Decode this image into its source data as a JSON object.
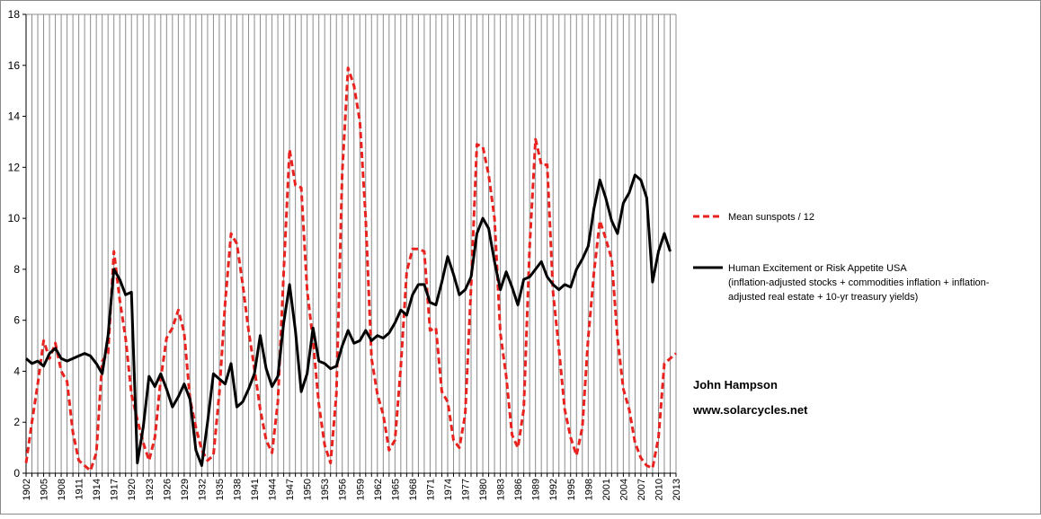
{
  "chart_data": {
    "type": "line",
    "title": "",
    "xlabel": "",
    "ylabel": "",
    "ylim": [
      0,
      18
    ],
    "yticks": [
      0,
      2,
      4,
      6,
      8,
      10,
      12,
      14,
      16,
      18
    ],
    "xlim": [
      1902,
      2013
    ],
    "xtick_labels": [
      "1902",
      "1905",
      "1908",
      "1911",
      "1914",
      "1917",
      "1920",
      "1923",
      "1926",
      "1929",
      "1932",
      "1935",
      "1938",
      "1941",
      "1944",
      "1947",
      "1950",
      "1953",
      "1956",
      "1959",
      "1962",
      "1965",
      "1968",
      "1971",
      "1974",
      "1977",
      "1980",
      "1983",
      "1986",
      "1989",
      "1992",
      "1995",
      "1998",
      "2001",
      "2004",
      "2007",
      "2010",
      "2013"
    ],
    "grid": "vertical-gridlines",
    "legend_position": "right",
    "series": [
      {
        "name": "Mean sunspots  / 12",
        "color": "#e8231f",
        "style": "dashed",
        "x": [
          1902,
          1903,
          1904,
          1905,
          1906,
          1907,
          1908,
          1909,
          1910,
          1911,
          1912,
          1913,
          1914,
          1915,
          1916,
          1917,
          1918,
          1919,
          1920,
          1921,
          1922,
          1923,
          1924,
          1925,
          1926,
          1927,
          1928,
          1929,
          1930,
          1931,
          1932,
          1933,
          1934,
          1935,
          1936,
          1937,
          1938,
          1939,
          1940,
          1941,
          1942,
          1943,
          1944,
          1945,
          1946,
          1947,
          1948,
          1949,
          1950,
          1951,
          1952,
          1953,
          1954,
          1955,
          1956,
          1957,
          1958,
          1959,
          1960,
          1961,
          1962,
          1963,
          1964,
          1965,
          1966,
          1967,
          1968,
          1969,
          1970,
          1971,
          1972,
          1973,
          1974,
          1975,
          1976,
          1977,
          1978,
          1979,
          1980,
          1981,
          1982,
          1983,
          1984,
          1985,
          1986,
          1987,
          1988,
          1989,
          1990,
          1991,
          1992,
          1993,
          1994,
          1995,
          1996,
          1997,
          1998,
          1999,
          2000,
          2001,
          2002,
          2003,
          2004,
          2005,
          2006,
          2007,
          2008,
          2009,
          2010,
          2011,
          2012,
          2013
        ],
        "values": [
          0.4,
          2.0,
          3.5,
          5.2,
          4.5,
          5.1,
          4.0,
          3.6,
          1.6,
          0.5,
          0.3,
          0.1,
          0.8,
          4.4,
          4.7,
          8.7,
          6.8,
          5.3,
          3.1,
          2.1,
          1.2,
          0.5,
          1.4,
          3.7,
          5.3,
          5.7,
          6.4,
          5.5,
          2.9,
          1.8,
          0.9,
          0.5,
          0.7,
          3.1,
          6.7,
          9.4,
          9.0,
          7.4,
          5.6,
          4.1,
          2.5,
          1.3,
          0.8,
          2.8,
          7.9,
          12.7,
          11.3,
          11.2,
          7.2,
          5.2,
          2.7,
          1.1,
          0.4,
          3.1,
          11.8,
          15.9,
          15.2,
          13.8,
          10.0,
          4.5,
          3.1,
          2.3,
          0.9,
          1.3,
          4.2,
          7.9,
          8.8,
          8.8,
          8.7,
          5.6,
          5.7,
          3.2,
          2.8,
          1.3,
          1.0,
          2.3,
          7.3,
          12.9,
          12.8,
          11.7,
          10.0,
          5.5,
          3.8,
          1.5,
          1.0,
          2.5,
          8.9,
          13.1,
          12.1,
          12.1,
          7.1,
          4.9,
          2.5,
          1.4,
          0.7,
          1.8,
          5.3,
          7.9,
          9.9,
          9.2,
          8.4,
          5.3,
          3.3,
          2.5,
          1.2,
          0.6,
          0.3,
          0.2,
          1.4,
          4.3,
          4.5,
          4.7
        ]
      },
      {
        "name": "Human Excitement or Risk Appetite USA",
        "subtitle_lines": [
          "(inflation-adjusted stocks + commodities  inflation + inflation-",
          "adjusted real estate + 10-yr treasury yields)"
        ],
        "color": "#000000",
        "style": "solid",
        "x": [
          1902,
          1903,
          1904,
          1905,
          1906,
          1907,
          1908,
          1909,
          1910,
          1911,
          1912,
          1913,
          1914,
          1915,
          1916,
          1917,
          1918,
          1919,
          1920,
          1921,
          1922,
          1923,
          1924,
          1925,
          1926,
          1927,
          1928,
          1929,
          1930,
          1931,
          1932,
          1933,
          1934,
          1935,
          1936,
          1937,
          1938,
          1939,
          1940,
          1941,
          1942,
          1943,
          1944,
          1945,
          1946,
          1947,
          1948,
          1949,
          1950,
          1951,
          1952,
          1953,
          1954,
          1955,
          1956,
          1957,
          1958,
          1959,
          1960,
          1961,
          1962,
          1963,
          1964,
          1965,
          1966,
          1967,
          1968,
          1969,
          1970,
          1971,
          1972,
          1973,
          1974,
          1975,
          1976,
          1977,
          1978,
          1979,
          1980,
          1981,
          1982,
          1983,
          1984,
          1985,
          1986,
          1987,
          1988,
          1989,
          1990,
          1991,
          1992,
          1993,
          1994,
          1995,
          1996,
          1997,
          1998,
          1999,
          2000,
          2001,
          2002,
          2003,
          2004,
          2005,
          2006,
          2007,
          2008,
          2009,
          2010,
          2011,
          2012
        ],
        "values": [
          4.5,
          4.3,
          4.4,
          4.2,
          4.7,
          4.9,
          4.5,
          4.4,
          4.5,
          4.6,
          4.7,
          4.6,
          4.3,
          3.9,
          5.4,
          8.0,
          7.6,
          7.0,
          7.1,
          0.4,
          1.8,
          3.8,
          3.4,
          3.9,
          3.3,
          2.6,
          3.0,
          3.5,
          2.9,
          0.9,
          0.3,
          2.0,
          3.9,
          3.7,
          3.5,
          4.3,
          2.6,
          2.8,
          3.3,
          3.9,
          5.4,
          4.1,
          3.4,
          3.8,
          5.9,
          7.4,
          5.6,
          3.2,
          3.9,
          5.7,
          4.4,
          4.3,
          4.1,
          4.2,
          5.0,
          5.6,
          5.1,
          5.2,
          5.6,
          5.2,
          5.4,
          5.3,
          5.5,
          5.9,
          6.4,
          6.2,
          7.0,
          7.4,
          7.4,
          6.7,
          6.6,
          7.5,
          8.5,
          7.8,
          7.0,
          7.2,
          7.7,
          9.4,
          10.0,
          9.6,
          8.3,
          7.2,
          7.9,
          7.3,
          6.6,
          7.6,
          7.7,
          8.0,
          8.3,
          7.7,
          7.4,
          7.2,
          7.4,
          7.3,
          8.0,
          8.4,
          8.9,
          10.4,
          11.5,
          10.8,
          9.9,
          9.4,
          10.6,
          11.0,
          11.7,
          11.5,
          10.8,
          7.5,
          8.7,
          9.4,
          8.7
        ]
      }
    ]
  },
  "legend": {
    "sunspots_label": "Mean sunspots  / 12",
    "risk_label": "Human Excitement or Risk Appetite USA",
    "risk_desc_line1": "(inflation-adjusted stocks + commodities  inflation + inflation-",
    "risk_desc_line2": "adjusted real estate + 10-yr treasury yields)"
  },
  "credits": {
    "author": "John Hampson",
    "website": "www.solarcycles.net"
  }
}
